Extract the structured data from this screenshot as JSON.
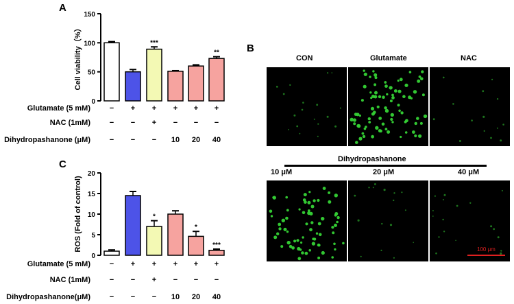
{
  "panels": {
    "A": "A",
    "B": "B",
    "C": "C"
  },
  "chart_data": [
    {
      "id": "A",
      "type": "bar",
      "ylabel": "Cell viability（%）",
      "ylim": [
        0,
        150
      ],
      "yticks": [
        "0",
        "50",
        "100",
        "150"
      ],
      "categories": [
        "1",
        "2",
        "3",
        "4",
        "5",
        "6"
      ],
      "values": [
        100,
        50,
        89,
        51,
        60,
        73
      ],
      "errors": [
        2,
        4,
        4,
        1,
        2,
        3
      ],
      "significance": [
        "",
        "",
        "***",
        "",
        "",
        "**"
      ],
      "colors": [
        "#ffffff",
        "#4d53e8",
        "#f3f9b4",
        "#f6a39f",
        "#f6a39f",
        "#f6a39f"
      ],
      "conditions": [
        {
          "label": "Glutamate (5 mM)",
          "values": [
            "−",
            "+",
            "+",
            "+",
            "+",
            "+"
          ]
        },
        {
          "label": "NAC  (1mM)",
          "values": [
            "−",
            "−",
            "+",
            "−",
            "−",
            "−"
          ]
        },
        {
          "label": "Dihydropashanone (μM)",
          "values": [
            "−",
            "−",
            "−",
            "10",
            "20",
            "40"
          ]
        }
      ]
    },
    {
      "id": "C",
      "type": "bar",
      "ylabel": "ROS (Fold of control)",
      "ylim": [
        0,
        20
      ],
      "yticks": [
        "0",
        "5",
        "10",
        "15",
        "20"
      ],
      "categories": [
        "1",
        "2",
        "3",
        "4",
        "5",
        "6"
      ],
      "values": [
        1,
        14.5,
        7,
        10,
        4.6,
        1.2
      ],
      "errors": [
        0.3,
        1.0,
        1.4,
        0.8,
        1.2,
        0.3
      ],
      "significance": [
        "",
        "",
        "*",
        "",
        "*",
        "***"
      ],
      "colors": [
        "#ffffff",
        "#4d53e8",
        "#f3f9b4",
        "#f6a39f",
        "#f6a39f",
        "#f6a39f"
      ],
      "conditions": [
        {
          "label": "Glutamate (5 mM)",
          "values": [
            "−",
            "+",
            "+",
            "+",
            "+",
            "+"
          ]
        },
        {
          "label": "NAC  (1mM)",
          "values": [
            "−",
            "−",
            "+",
            "−",
            "−",
            "−"
          ]
        },
        {
          "label": "Dihydropashanone(μM)",
          "values": [
            "−",
            "−",
            "−",
            "10",
            "20",
            "40"
          ]
        }
      ]
    }
  ],
  "micrographs": {
    "top_titles": [
      "CON",
      "Glutamate",
      "NAC"
    ],
    "group_title": "Dihydropashanone",
    "bottom_titles": [
      "10 μM",
      "20 μM",
      "40 μM"
    ],
    "scale_bar": "100 μm",
    "cell_color": "#35d235",
    "scale_color": "#e02020"
  }
}
